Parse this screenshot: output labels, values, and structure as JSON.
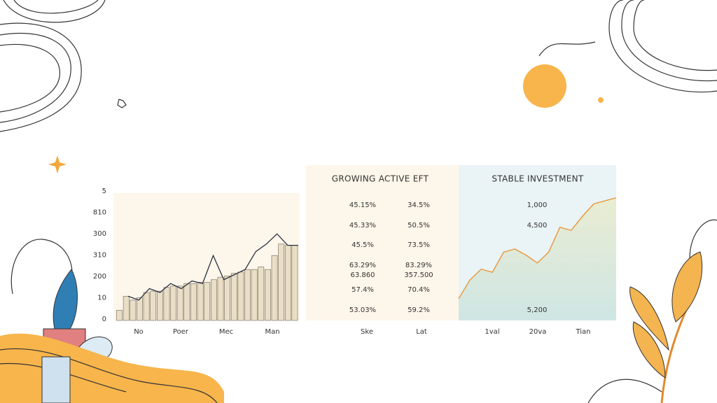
{
  "left_chart": {
    "y_labels": [
      "5",
      "810",
      "300",
      "310",
      "200",
      "10",
      "0"
    ],
    "x_labels": [
      "No",
      "Poer",
      "Mec",
      "Man"
    ],
    "bar_color": "#eadfc6",
    "line_color": "#2a3142",
    "ylim": [
      0,
      100
    ],
    "bars": [
      8,
      19,
      16,
      18,
      22,
      23,
      23,
      26,
      27,
      27,
      29,
      29,
      30,
      30,
      32,
      34,
      35,
      37,
      38,
      40,
      40,
      42,
      40,
      51,
      60,
      59,
      59
    ],
    "line": [
      19,
      16,
      25,
      22,
      29,
      25,
      31,
      29,
      51,
      32,
      36,
      40,
      54,
      60,
      68,
      59,
      59
    ]
  },
  "table": {
    "title": "GROWING ACTIVE EFT",
    "rows": [
      [
        "45.15%",
        "34.5%"
      ],
      [
        "45.33%",
        "50.5%"
      ],
      [
        "45.5%",
        "73.5%"
      ],
      [
        "63.29%",
        "83.29%"
      ],
      [
        "63.860",
        "357.500"
      ],
      [
        "57.4%",
        "70.4%"
      ],
      [
        "53.03%",
        "59.2%"
      ]
    ],
    "red_rows": 3,
    "footer": [
      "Ske",
      "Lat"
    ]
  },
  "right_chart": {
    "title": "STABLE INVESTMENT",
    "labels": [
      "1,000",
      "4,500",
      "5,200"
    ],
    "x_labels": [
      "1val",
      "20va",
      "Tian"
    ],
    "line_color": "#e8973a",
    "ylim": [
      0,
      100
    ],
    "line": [
      14,
      26,
      33,
      31,
      44,
      46,
      42,
      37,
      44,
      60,
      58,
      67,
      75,
      77,
      79
    ]
  }
}
